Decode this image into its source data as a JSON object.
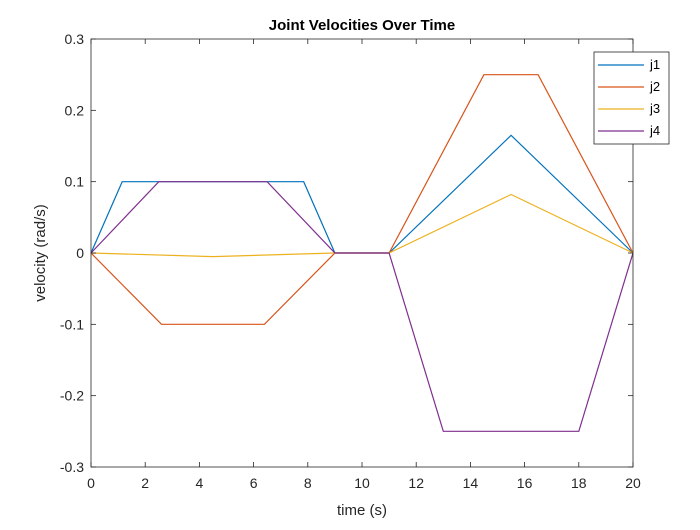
{
  "chart_data": {
    "type": "line",
    "title": "Joint Velocities Over Time",
    "xlabel": "time (s)",
    "ylabel": "velocity (rad/s)",
    "xlim": [
      0,
      20
    ],
    "ylim": [
      -0.3,
      0.3
    ],
    "xticks": [
      0,
      2,
      4,
      6,
      8,
      10,
      12,
      14,
      16,
      18,
      20
    ],
    "yticks": [
      0.3,
      0.2,
      0.1,
      0,
      -0.1,
      -0.2,
      -0.3
    ],
    "xtick_labels": [
      "0",
      "2",
      "4",
      "6",
      "8",
      "10",
      "12",
      "14",
      "16",
      "18",
      "20"
    ],
    "ytick_labels": [
      "0.3",
      "0.2",
      "0.1",
      "0",
      "-0.1",
      "-0.2",
      "-0.3"
    ],
    "grid": false,
    "legend_position": "top-right",
    "series": [
      {
        "name": "j1",
        "color": "#0072BD",
        "x": [
          0,
          1.15,
          7.85,
          9,
          11,
          15.5,
          20
        ],
        "y": [
          0,
          0.1,
          0.1,
          0,
          0,
          0.165,
          0
        ]
      },
      {
        "name": "j2",
        "color": "#D95319",
        "x": [
          0,
          2.6,
          6.4,
          9,
          11,
          14.5,
          16.5,
          20
        ],
        "y": [
          0,
          -0.1,
          -0.1,
          0,
          0,
          0.25,
          0.25,
          0
        ]
      },
      {
        "name": "j3",
        "color": "#EDB120",
        "x": [
          0,
          4.5,
          9,
          11,
          15.5,
          20
        ],
        "y": [
          0,
          -0.005,
          0,
          0,
          0.082,
          0
        ]
      },
      {
        "name": "j4",
        "color": "#7E2F8E",
        "x": [
          0,
          2.5,
          6.5,
          9,
          11,
          13,
          18,
          20
        ],
        "y": [
          0,
          0.1,
          0.1,
          0,
          0,
          -0.25,
          -0.25,
          0
        ]
      }
    ]
  }
}
